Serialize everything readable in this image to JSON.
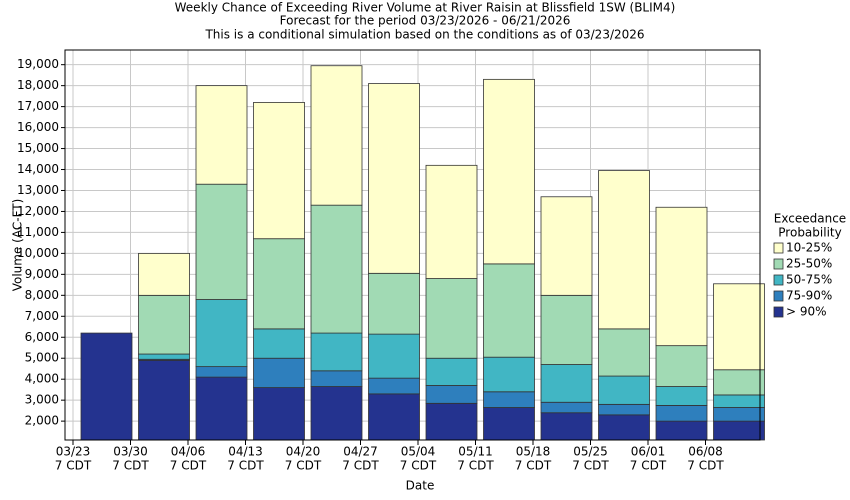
{
  "chart_data": {
    "type": "range-bar",
    "title": "Weekly Chance of Exceeding River Volume at River Raisin at Blissfield 1SW (BLIM4)",
    "subtitle": "Forecast for the period 03/23/2026 - 06/21/2026",
    "note": "This is a conditional simulation based on the conditions as of 03/23/2026",
    "x_label": "Date",
    "y_label": "Volume (AC-FT)",
    "legend_title": [
      "Exceedance",
      "Probability"
    ],
    "categories": [
      [
        "03/23",
        "7 CDT"
      ],
      [
        "03/30",
        "7 CDT"
      ],
      [
        "04/06",
        "7 CDT"
      ],
      [
        "04/13",
        "7 CDT"
      ],
      [
        "04/20",
        "7 CDT"
      ],
      [
        "04/27",
        "7 CDT"
      ],
      [
        "05/04",
        "7 CDT"
      ],
      [
        "05/11",
        "7 CDT"
      ],
      [
        "05/18",
        "7 CDT"
      ],
      [
        "05/25",
        "7 CDT"
      ],
      [
        "06/01",
        "7 CDT"
      ],
      [
        "06/08",
        "7 CDT"
      ]
    ],
    "series": [
      {
        "name": "> 90%",
        "color": "#24338f",
        "values": [
          6200,
          4900,
          4100,
          3600,
          3650,
          3300,
          2850,
          2650,
          2400,
          2300,
          2000,
          2000
        ]
      },
      {
        "name": "75-90%",
        "color": "#2e7fbd",
        "values": [
          6200,
          4950,
          4600,
          5000,
          4400,
          4050,
          3700,
          3400,
          2900,
          2800,
          2750,
          2650
        ]
      },
      {
        "name": "50-75%",
        "color": "#41b6c4",
        "values": [
          6200,
          5200,
          7800,
          6400,
          6200,
          6150,
          5000,
          5050,
          4700,
          4150,
          3650,
          3250
        ]
      },
      {
        "name": "25-50%",
        "color": "#a1dab4",
        "values": [
          6200,
          8000,
          13300,
          10700,
          12300,
          9050,
          8800,
          9500,
          8000,
          6400,
          5600,
          4450
        ]
      },
      {
        "name": "10-25%",
        "color": "#ffffcc",
        "values": [
          6200,
          10000,
          18000,
          17200,
          18950,
          18100,
          14200,
          18300,
          12700,
          13950,
          12200,
          8550
        ]
      }
    ],
    "ylim": [
      1100,
      19700
    ],
    "yticks": [
      {
        "value": 2000,
        "label": "2,000"
      },
      {
        "value": 3000,
        "label": "3,000"
      },
      {
        "value": 4000,
        "label": "4,000"
      },
      {
        "value": 5000,
        "label": "5,000"
      },
      {
        "value": 6000,
        "label": "6,000"
      },
      {
        "value": 7000,
        "label": "7,000"
      },
      {
        "value": 8000,
        "label": "8,000"
      },
      {
        "value": 9000,
        "label": "9,000"
      },
      {
        "value": 10000,
        "label": "10,000"
      },
      {
        "value": 11000,
        "label": "11,000"
      },
      {
        "value": 12000,
        "label": "12,000"
      },
      {
        "value": 13000,
        "label": "13,000"
      },
      {
        "value": 14000,
        "label": "14,000"
      },
      {
        "value": 15000,
        "label": "15,000"
      },
      {
        "value": 16000,
        "label": "16,000"
      },
      {
        "value": 17000,
        "label": "17,000"
      },
      {
        "value": 18000,
        "label": "18,000"
      },
      {
        "value": 19000,
        "label": "19,000"
      }
    ],
    "grid": true
  }
}
